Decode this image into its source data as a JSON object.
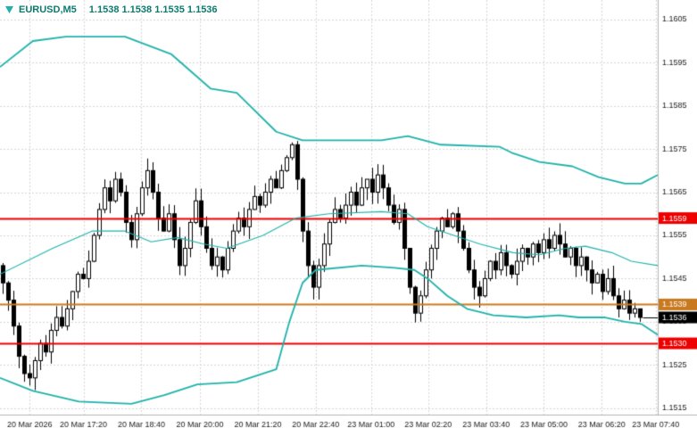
{
  "header": {
    "symbol": "EURUSD,M5",
    "ohlc": "1.1538 1.1538 1.1535 1.1536"
  },
  "colors": {
    "background": "#ffffff",
    "grid": "#d6d6d6",
    "candle_outline": "#000000",
    "candle_up_fill": "#ffffff",
    "candle_down_fill": "#000000",
    "band": "#20b2aa",
    "level_red": "#ee0000",
    "level_orange": "#c97a1f",
    "bid_black": "#000000",
    "axis_text": "#1a1a1a",
    "badge_text": "#ffffff",
    "header_text": "#0b7b6e",
    "axis_border": "#b5b5b5"
  },
  "chart_data": {
    "type": "candlestick",
    "title": "EURUSD,M5",
    "symbol": "EURUSD",
    "timeframe": "M5",
    "ylim": [
      1.15135,
      1.16095
    ],
    "y_ticks": [
      "1.1605",
      "1.1595",
      "1.1585",
      "1.1575",
      "1.1565",
      "1.1555",
      "1.1545",
      "1.1535",
      "1.1525",
      "1.1515"
    ],
    "x_labels": [
      {
        "text": "20 Mar 2026",
        "pos": 0.045
      },
      {
        "text": "20 Mar 17:20",
        "pos": 0.127
      },
      {
        "text": "20 Mar 18:40",
        "pos": 0.215
      },
      {
        "text": "20 Mar 20:00",
        "pos": 0.304
      },
      {
        "text": "20 Mar 21:20",
        "pos": 0.392
      },
      {
        "text": "20 Mar 22:40",
        "pos": 0.48
      },
      {
        "text": "23 Mar 01:00",
        "pos": 0.564
      },
      {
        "text": "23 Mar 02:20",
        "pos": 0.651
      },
      {
        "text": "23 Mar 03:40",
        "pos": 0.739
      },
      {
        "text": "23 Mar 05:00",
        "pos": 0.827
      },
      {
        "text": "23 Mar 06:20",
        "pos": 0.915
      },
      {
        "text": "23 Mar 07:40",
        "pos": 0.997
      }
    ],
    "closes": [
      1.1544,
      1.154,
      1.1534,
      1.1527,
      1.1523,
      1.1522,
      1.1526,
      1.153,
      1.1528,
      1.1533,
      1.1536,
      1.1534,
      1.1538,
      1.1542,
      1.1546,
      1.1545,
      1.1549,
      1.1555,
      1.1561,
      1.1566,
      1.1563,
      1.1568,
      1.1565,
      1.1558,
      1.1554,
      1.156,
      1.1566,
      1.157,
      1.1565,
      1.1559,
      1.1556,
      1.156,
      1.1554,
      1.1548,
      1.1552,
      1.1558,
      1.1563,
      1.1557,
      1.1552,
      1.1548,
      1.155,
      1.1547,
      1.1552,
      1.1556,
      1.1559,
      1.1557,
      1.1561,
      1.1564,
      1.1562,
      1.1565,
      1.1568,
      1.1566,
      1.157,
      1.1573,
      1.1576,
      1.1568,
      1.1556,
      1.1548,
      1.1543,
      1.1548,
      1.1553,
      1.1558,
      1.1561,
      1.1559,
      1.1562,
      1.1565,
      1.1562,
      1.1566,
      1.1568,
      1.1565,
      1.1569,
      1.1566,
      1.1562,
      1.1558,
      1.1561,
      1.1552,
      1.1543,
      1.1537,
      1.1541,
      1.1547,
      1.1552,
      1.1556,
      1.1559,
      1.1557,
      1.156,
      1.1556,
      1.1552,
      1.1547,
      1.1543,
      1.1541,
      1.1545,
      1.1549,
      1.1547,
      1.1551,
      1.1548,
      1.1546,
      1.1549,
      1.1552,
      1.155,
      1.1553,
      1.1551,
      1.1554,
      1.1552,
      1.1555,
      1.1553,
      1.155,
      1.1552,
      1.1548,
      1.155,
      1.1547,
      1.1544,
      1.1546,
      1.1542,
      1.1545,
      1.1541,
      1.1538,
      1.154,
      1.1537,
      1.1538,
      1.1536
    ],
    "last_ohlc": [
      1.1538,
      1.1538,
      1.1535,
      1.1536
    ],
    "bands": {
      "upper": [
        [
          0,
          1.1594
        ],
        [
          0.05,
          1.16
        ],
        [
          0.1,
          1.1601
        ],
        [
          0.19,
          1.1601
        ],
        [
          0.26,
          1.1597
        ],
        [
          0.32,
          1.1589
        ],
        [
          0.36,
          1.1588
        ],
        [
          0.42,
          1.1579
        ],
        [
          0.46,
          1.1577
        ],
        [
          0.58,
          1.1577
        ],
        [
          0.62,
          1.1578
        ],
        [
          0.67,
          1.1576
        ],
        [
          0.76,
          1.15755
        ],
        [
          0.78,
          1.1574
        ],
        [
          0.82,
          1.1572
        ],
        [
          0.87,
          1.1571
        ],
        [
          0.91,
          1.15685
        ],
        [
          0.95,
          1.1567
        ],
        [
          0.975,
          1.1567
        ],
        [
          1,
          1.1569
        ]
      ],
      "middle": [
        [
          0,
          1.1546
        ],
        [
          0.08,
          1.1552
        ],
        [
          0.14,
          1.1556
        ],
        [
          0.19,
          1.1556
        ],
        [
          0.23,
          1.15535
        ],
        [
          0.27,
          1.15545
        ],
        [
          0.31,
          1.1553
        ],
        [
          0.345,
          1.1552
        ],
        [
          0.4,
          1.1555
        ],
        [
          0.45,
          1.1559
        ],
        [
          0.5,
          1.156
        ],
        [
          0.58,
          1.15605
        ],
        [
          0.62,
          1.156
        ],
        [
          0.65,
          1.1557
        ],
        [
          0.69,
          1.1555
        ],
        [
          0.73,
          1.1553
        ],
        [
          0.78,
          1.1551
        ],
        [
          0.82,
          1.15505
        ],
        [
          0.86,
          1.1552
        ],
        [
          0.89,
          1.15525
        ],
        [
          0.93,
          1.1551
        ],
        [
          0.96,
          1.1549
        ],
        [
          1,
          1.1548
        ]
      ],
      "lower": [
        [
          0,
          1.1522
        ],
        [
          0.05,
          1.1519
        ],
        [
          0.12,
          1.15165
        ],
        [
          0.2,
          1.1516
        ],
        [
          0.25,
          1.1518
        ],
        [
          0.3,
          1.15205
        ],
        [
          0.36,
          1.1521
        ],
        [
          0.42,
          1.1524
        ],
        [
          0.44,
          1.1535
        ],
        [
          0.46,
          1.1544
        ],
        [
          0.48,
          1.1547
        ],
        [
          0.55,
          1.1548
        ],
        [
          0.6,
          1.15475
        ],
        [
          0.63,
          1.1547
        ],
        [
          0.65,
          1.1545
        ],
        [
          0.68,
          1.1541
        ],
        [
          0.71,
          1.1538
        ],
        [
          0.75,
          1.15365
        ],
        [
          0.8,
          1.1536
        ],
        [
          0.85,
          1.15365
        ],
        [
          0.88,
          1.1536
        ],
        [
          0.92,
          1.1536
        ],
        [
          0.95,
          1.1535
        ],
        [
          0.975,
          1.15345
        ],
        [
          1,
          1.1532
        ]
      ]
    },
    "levels": [
      {
        "price": 1.1559,
        "label": "1.1559",
        "color_key": "level_red",
        "width": 2
      },
      {
        "price": 1.1539,
        "label": "1.1539",
        "color_key": "level_orange",
        "width": 2
      },
      {
        "price": 1.153,
        "label": "1.1530",
        "color_key": "level_red",
        "width": 2
      }
    ],
    "bid": {
      "price": 1.1536,
      "label": "1.1536",
      "color_key": "bid_black"
    }
  }
}
